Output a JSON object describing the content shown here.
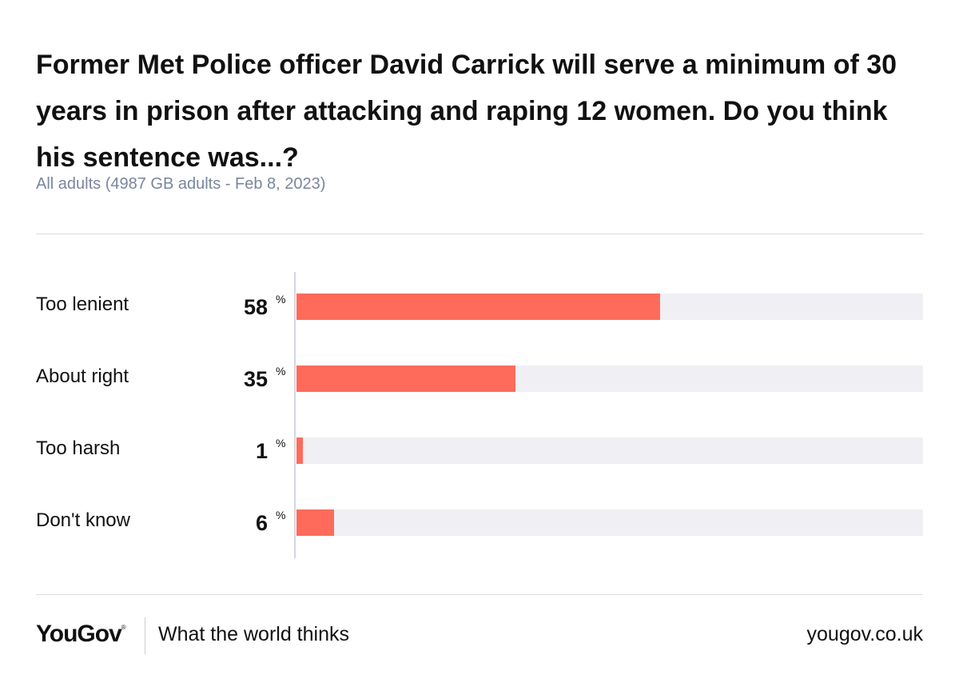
{
  "chart_data": {
    "type": "bar",
    "orientation": "horizontal",
    "title": "Former Met Police officer David Carrick will serve a minimum of 30 years in prison after attacking and raping 12 women. Do you think his sentence was...?",
    "subtitle": "All adults (4987 GB adults - Feb 8, 2023)",
    "categories": [
      "Too lenient",
      "About right",
      "Too harsh",
      "Don't know"
    ],
    "values": [
      58,
      35,
      1,
      6
    ],
    "unit": "%",
    "xlim": [
      0,
      100
    ],
    "grid": false,
    "bar_color": "#ff6b5b",
    "track_color": "#efeff4"
  },
  "footer": {
    "brand": "YouGov",
    "brand_mark": "®",
    "tagline": "What the world thinks",
    "url": "yougov.co.uk"
  }
}
